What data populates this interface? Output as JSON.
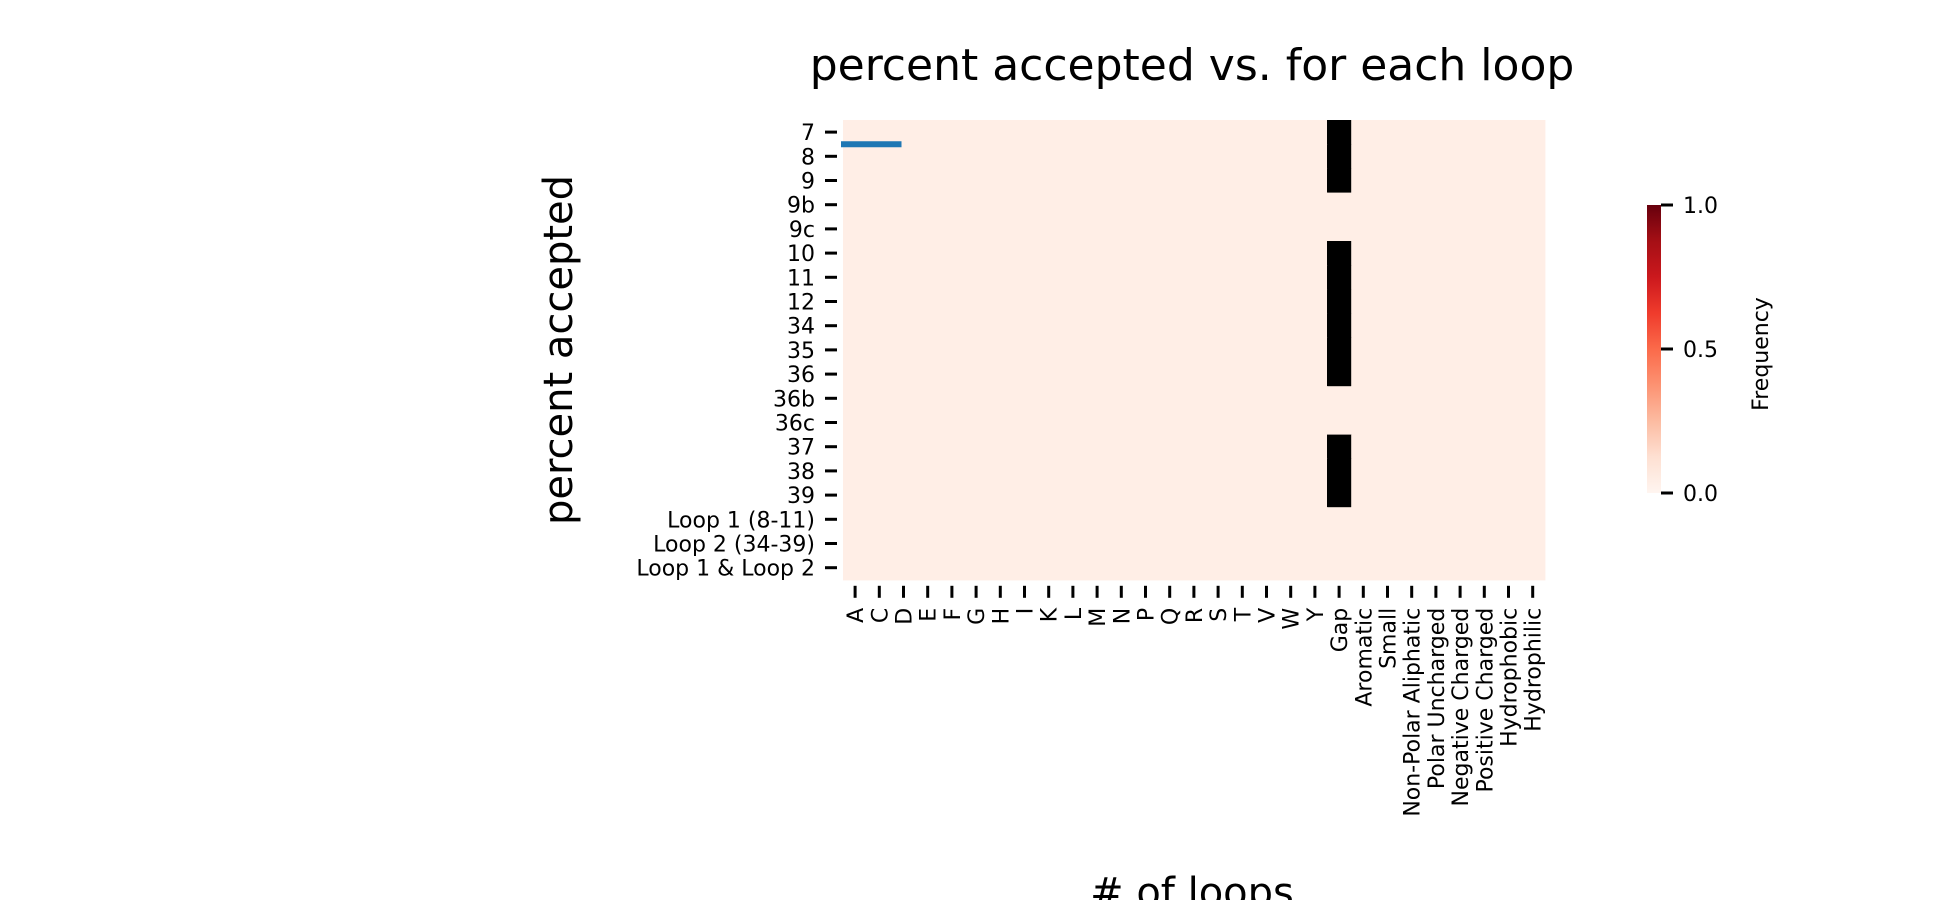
{
  "chart_data": {
    "type": "heatmap",
    "title": "percent accepted vs. for each loop",
    "xlabel": "# of loops",
    "ylabel": "percent accepted",
    "x_categories": [
      "A",
      "C",
      "D",
      "E",
      "F",
      "G",
      "H",
      "I",
      "K",
      "L",
      "M",
      "N",
      "P",
      "Q",
      "R",
      "S",
      "T",
      "V",
      "W",
      "Y",
      "Gap",
      "Aromatic",
      "Small",
      "Non-Polar Aliphatic",
      "Polar Uncharged",
      "Negative Charged",
      "Positive Charged",
      "Hydrophobic",
      "Hydrophilic"
    ],
    "y_categories": [
      "7",
      "8",
      "9",
      "9b",
      "9c",
      "10",
      "11",
      "12",
      "34",
      "35",
      "36",
      "36b",
      "36c",
      "37",
      "38",
      "39",
      "Loop 1 (8-11)",
      "Loop 2 (34-39)",
      "Loop 1 & Loop 2"
    ],
    "colormap": "Reds",
    "background_value": 0.04,
    "masked_color": "#000000",
    "masked_cells": {
      "column": "Gap",
      "rows": [
        "7",
        "8",
        "9",
        "10",
        "11",
        "12",
        "34",
        "35",
        "36",
        "37",
        "38",
        "39"
      ]
    },
    "colorbar": {
      "label": "Frequency",
      "min": 0.0,
      "max": 1.0,
      "ticks": [
        0.0,
        0.5,
        1.0
      ],
      "tick_labels": [
        "0.0",
        "0.5",
        "1.0"
      ]
    },
    "annotation": {
      "type": "line",
      "color": "#1f77b4",
      "x_from": "A",
      "x_to": "D",
      "y_between": [
        "7",
        "8"
      ]
    }
  }
}
